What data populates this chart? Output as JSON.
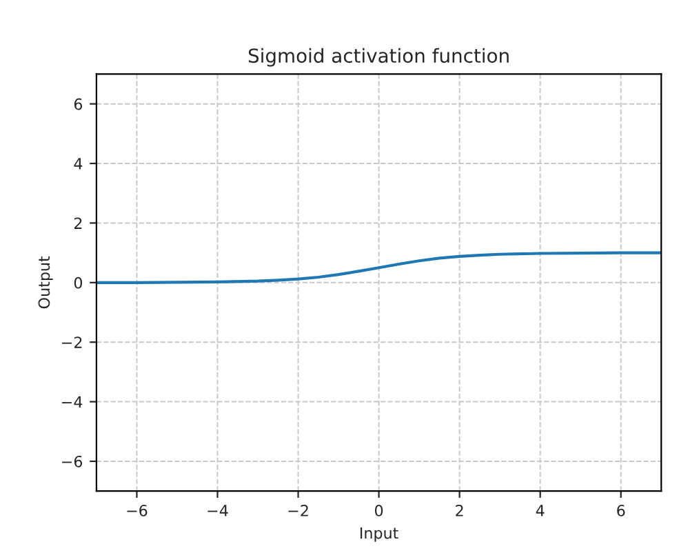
{
  "chart_data": {
    "type": "line",
    "title": "Sigmoid activation function",
    "xlabel": "Input",
    "ylabel": "Output",
    "x": [
      -7,
      -6,
      -5,
      -4,
      -3,
      -2.5,
      -2,
      -1.5,
      -1,
      -0.5,
      0,
      0.5,
      1,
      1.5,
      2,
      2.5,
      3,
      4,
      5,
      6,
      7
    ],
    "series": [
      {
        "color": "#1f77b4",
        "values": [
          0.0,
          0.0,
          0.01,
          0.02,
          0.05,
          0.08,
          0.12,
          0.18,
          0.27,
          0.38,
          0.5,
          0.62,
          0.73,
          0.82,
          0.88,
          0.92,
          0.95,
          0.98,
          0.99,
          1.0,
          1.0
        ]
      }
    ],
    "xlim": [
      -7,
      7
    ],
    "ylim": [
      -7,
      7
    ],
    "xticks": [
      {
        "value": -6,
        "label": "−6"
      },
      {
        "value": -4,
        "label": "−4"
      },
      {
        "value": -2,
        "label": "−2"
      },
      0,
      2,
      4,
      6
    ],
    "yticks": [
      {
        "value": -6,
        "label": "−6"
      },
      {
        "value": -4,
        "label": "−4"
      },
      {
        "value": -2,
        "label": "−2"
      },
      0,
      2,
      4,
      6
    ],
    "grid": true,
    "marker": "none",
    "line_style": "solid",
    "legend": false
  }
}
